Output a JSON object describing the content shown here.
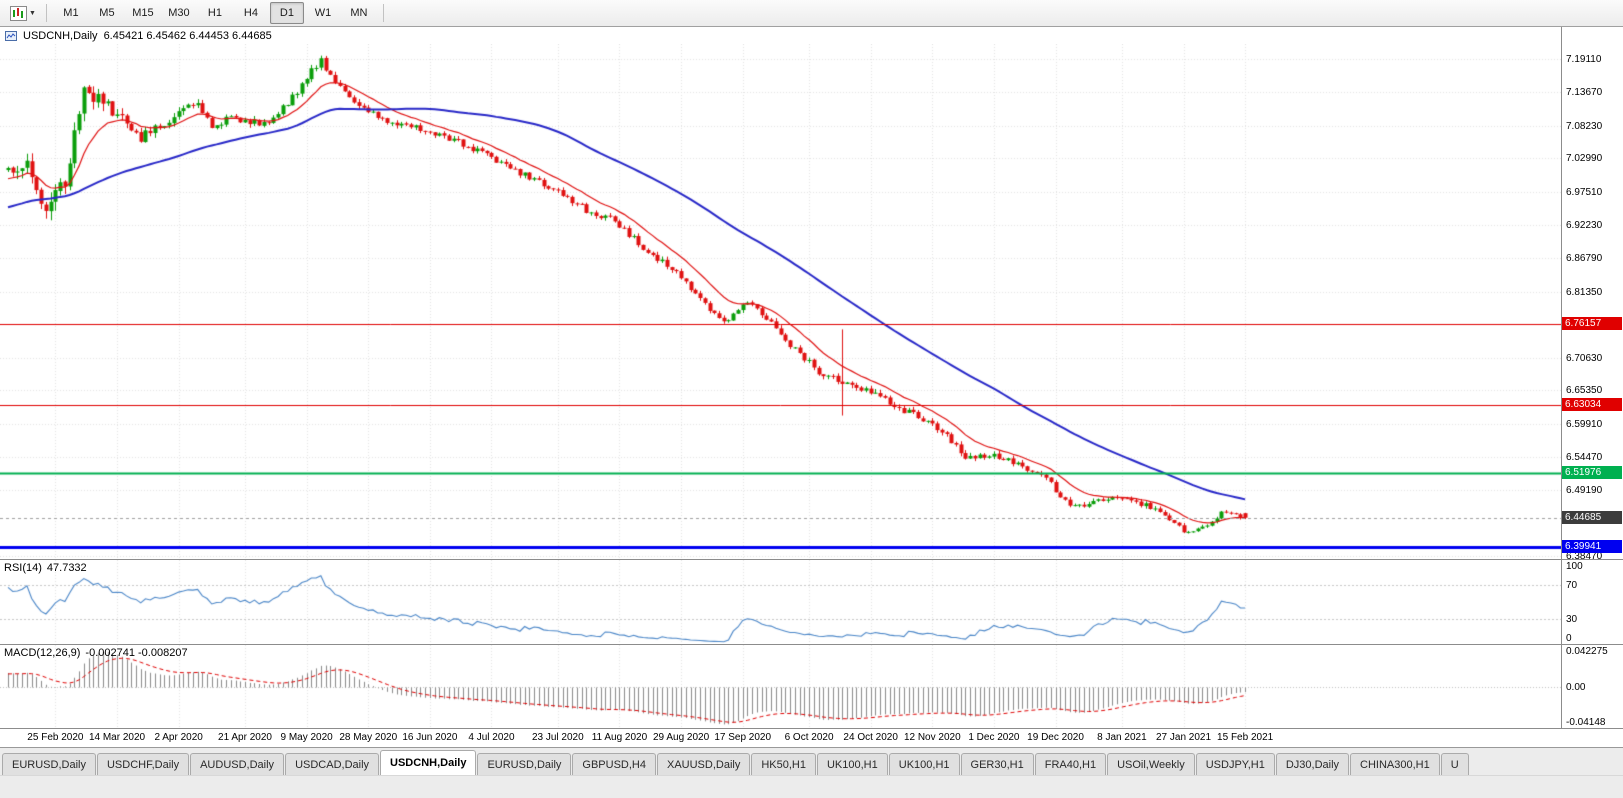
{
  "toolbar": {
    "dropdown_glyph": "▼",
    "timeframes": [
      "M1",
      "M5",
      "M15",
      "M30",
      "H1",
      "H4",
      "D1",
      "W1",
      "MN"
    ],
    "active_timeframe": "D1"
  },
  "header": {
    "symbol_title": "USDCNH,Daily",
    "ohlc_text": "6.45421 6.45462 6.44453 6.44685"
  },
  "price_axis": {
    "grid_labels": [
      "7.19110",
      "7.13670",
      "7.08230",
      "7.02990",
      "6.97510",
      "6.92230",
      "6.86790",
      "6.81350",
      "6.70630",
      "6.65350",
      "6.59910",
      "6.54470",
      "6.49190",
      "6.38470"
    ]
  },
  "rsi_panel": {
    "name": "RSI(14)",
    "value": "47.7332",
    "axis_labels": [
      "100",
      "70",
      "30",
      "0"
    ],
    "levels": [
      70,
      30
    ],
    "ylim": [
      0,
      100
    ],
    "line_color": "#4A86C8"
  },
  "macd_panel": {
    "name": "MACD(12,26,9)",
    "values": "-0.002741 -0.008207",
    "axis_labels": [
      "0.042275",
      "0.00",
      "-0.04148"
    ],
    "ylim": [
      -0.047,
      0.047
    ],
    "histogram_color": "#8A8A8A",
    "signal_color": "#E00000"
  },
  "bottom_tabs": {
    "items": [
      "EURUSD,Daily",
      "USDCHF,Daily",
      "AUDUSD,Daily",
      "USDCAD,Daily",
      "USDCNH,Daily",
      "EURUSD,Daily",
      "GBPUSD,H4",
      "XAUUSD,Daily",
      "HK50,H1",
      "UK100,H1",
      "UK100,H1",
      "GER30,H1",
      "FRA40,H1",
      "USOil,Weekly",
      "USDJPY,H1",
      "DJ30,Daily",
      "CHINA300,H1",
      "U"
    ],
    "active_index": 4
  },
  "chart_data": {
    "type": "candlestick",
    "symbol": "USDCNH",
    "timeframe": "Daily",
    "title": "USDCNH,Daily",
    "last_ohlc": {
      "open": 6.45421,
      "high": 6.45462,
      "low": 6.44453,
      "close": 6.44685
    },
    "current_price": 6.44685,
    "current_price_color": "#3C3C3C",
    "ylim": [
      6.3799,
      7.2151
    ],
    "num_candles": 262,
    "x_labels": [
      "25 Feb 2020",
      "14 Mar 2020",
      "2 Apr 2020",
      "21 Apr 2020",
      "9 May 2020",
      "28 May 2020",
      "16 Jun 2020",
      "4 Jul 2020",
      "23 Jul 2020",
      "11 Aug 2020",
      "29 Aug 2020",
      "17 Sep 2020",
      "6 Oct 2020",
      "24 Oct 2020",
      "12 Nov 2020",
      "1 Dec 2020",
      "19 Dec 2020",
      "8 Jan 2021",
      "27 Jan 2021",
      "15 Feb 2021"
    ],
    "horizontal_lines": [
      {
        "value": 6.76157,
        "color": "#E00000",
        "width": 1
      },
      {
        "value": 6.63034,
        "color": "#E00000",
        "width": 1
      },
      {
        "value": 6.51976,
        "color": "#00B050",
        "width": 2
      },
      {
        "value": 6.39941,
        "color": "#0000F0",
        "width": 3
      }
    ],
    "colors": {
      "bull": "#0B9E0B",
      "bear": "#E01212",
      "grid": "#E4E4E4"
    },
    "moving_averages": [
      {
        "type": "EMA",
        "period": 12,
        "color": "#E01212",
        "width": 1
      },
      {
        "type": "SMA",
        "period": 55,
        "color": "#2828C8",
        "width": 2
      }
    ],
    "price_path_anchors": [
      [
        -0.25,
        6.87
      ],
      [
        -0.1,
        6.955
      ],
      [
        -0.02,
        6.995
      ],
      [
        0,
        7.01
      ],
      [
        0.015,
        7.025
      ],
      [
        0.03,
        6.95
      ],
      [
        0.045,
        6.99
      ],
      [
        0.062,
        7.15
      ],
      [
        0.075,
        7.12
      ],
      [
        0.09,
        7.095
      ],
      [
        0.105,
        7.06
      ],
      [
        0.125,
        7.085
      ],
      [
        0.148,
        7.125
      ],
      [
        0.165,
        7.085
      ],
      [
        0.185,
        7.095
      ],
      [
        0.21,
        7.085
      ],
      [
        0.232,
        7.135
      ],
      [
        0.252,
        7.19
      ],
      [
        0.268,
        7.145
      ],
      [
        0.285,
        7.115
      ],
      [
        0.31,
        7.085
      ],
      [
        0.34,
        7.075
      ],
      [
        0.365,
        7.055
      ],
      [
        0.39,
        7.03
      ],
      [
        0.42,
        7.0
      ],
      [
        0.445,
        6.975
      ],
      [
        0.468,
        6.945
      ],
      [
        0.49,
        6.93
      ],
      [
        0.515,
        6.88
      ],
      [
        0.54,
        6.845
      ],
      [
        0.565,
        6.79
      ],
      [
        0.582,
        6.765
      ],
      [
        0.6,
        6.8
      ],
      [
        0.618,
        6.76
      ],
      [
        0.638,
        6.715
      ],
      [
        0.658,
        6.68
      ],
      [
        0.68,
        6.66
      ],
      [
        0.705,
        6.645
      ],
      [
        0.73,
        6.615
      ],
      [
        0.755,
        6.585
      ],
      [
        0.775,
        6.545
      ],
      [
        0.798,
        6.548
      ],
      [
        0.818,
        6.532
      ],
      [
        0.838,
        6.512
      ],
      [
        0.86,
        6.462
      ],
      [
        0.878,
        6.475
      ],
      [
        0.898,
        6.482
      ],
      [
        0.918,
        6.468
      ],
      [
        0.933,
        6.458
      ],
      [
        0.95,
        6.424
      ],
      [
        0.965,
        6.43
      ],
      [
        0.982,
        6.456
      ],
      [
        1,
        6.447
      ]
    ],
    "volatility_anchors": [
      [
        -0.25,
        0.012
      ],
      [
        0,
        0.02
      ],
      [
        0.04,
        0.03
      ],
      [
        0.07,
        0.026
      ],
      [
        0.12,
        0.014
      ],
      [
        0.2,
        0.011
      ],
      [
        0.3,
        0.01
      ],
      [
        0.45,
        0.009
      ],
      [
        0.6,
        0.01
      ],
      [
        0.7,
        0.011
      ],
      [
        0.8,
        0.009
      ],
      [
        0.9,
        0.008
      ],
      [
        1,
        0.006
      ]
    ],
    "spike_candles": [
      {
        "t": 0.675,
        "up": 0.08,
        "down": 0.05
      }
    ]
  }
}
